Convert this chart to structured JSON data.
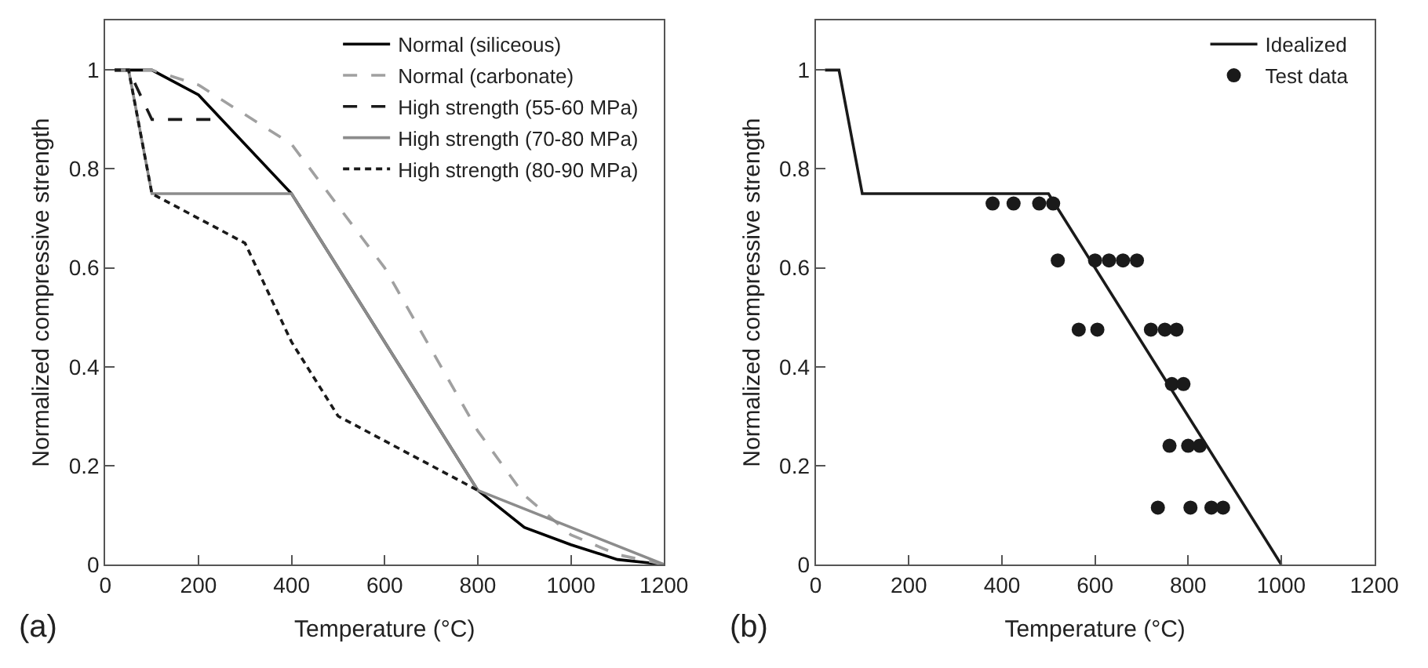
{
  "chart_data": [
    {
      "type": "line",
      "xlabel": "Temperature (°C)",
      "ylabel": "Normalized compressive strength",
      "annotations": [
        "(a)"
      ],
      "xlim": [
        0,
        1200
      ],
      "ylim": [
        0,
        1.1
      ],
      "xticks": [
        0,
        200,
        400,
        600,
        800,
        1000,
        1200
      ],
      "yticks": [
        0,
        0.2,
        0.4,
        0.6,
        0.8,
        1
      ],
      "legend": "top right",
      "marker": "none",
      "series": [
        {
          "name": "Normal (siliceous)",
          "color": "#000000",
          "line_style": "solid",
          "x": [
            20,
            100,
            200,
            400,
            800,
            900,
            1000,
            1100,
            1200
          ],
          "values": [
            1,
            1,
            0.95,
            0.75,
            0.15,
            0.075,
            0.04,
            0.01,
            0
          ]
        },
        {
          "name": "Normal (carbonate)",
          "color": "#a0a0a0",
          "line_style": "dashed",
          "x": [
            20,
            100,
            200,
            400,
            600,
            800,
            900,
            1000,
            1100,
            1200
          ],
          "values": [
            1,
            1,
            0.97,
            0.85,
            0.6,
            0.27,
            0.14,
            0.06,
            0.02,
            0
          ]
        },
        {
          "name": "High strength (55-60 MPa)",
          "color": "#1a1a1a",
          "line_style": "dashed",
          "x": [
            20,
            50,
            100,
            250
          ],
          "values": [
            1,
            1,
            0.9,
            0.9
          ]
        },
        {
          "name": "High strength (70-80 MPa)",
          "color": "#8c8c8c",
          "line_style": "solid",
          "x": [
            20,
            50,
            100,
            400,
            800,
            1200
          ],
          "values": [
            1,
            1,
            0.75,
            0.75,
            0.15,
            0
          ]
        },
        {
          "name": "High strength (80-90 MPa)",
          "color": "#1a1a1a",
          "line_style": "dotted",
          "x": [
            20,
            50,
            100,
            300,
            400,
            500,
            800
          ],
          "values": [
            1,
            1,
            0.75,
            0.65,
            0.45,
            0.3,
            0.15
          ]
        }
      ]
    },
    {
      "type": "line",
      "xlabel": "Temperature (°C)",
      "ylabel": "Normalized compressive strength",
      "annotations": [
        "(b)"
      ],
      "xlim": [
        0,
        1200
      ],
      "ylim": [
        0,
        1.1
      ],
      "xticks": [
        0,
        200,
        400,
        600,
        800,
        1000,
        1200
      ],
      "yticks": [
        0,
        0.2,
        0.4,
        0.6,
        0.8,
        1
      ],
      "legend": "top right",
      "series": [
        {
          "name": "Idealized",
          "color": "#1a1a1a",
          "line_style": "solid",
          "marker": "none",
          "x": [
            20,
            50,
            100,
            500,
            1000
          ],
          "values": [
            1,
            1,
            0.75,
            0.75,
            0
          ]
        },
        {
          "name": "Test data",
          "type": "scatter",
          "color": "#1a1a1a",
          "marker": "circle",
          "x": [
            380,
            425,
            480,
            510,
            520,
            600,
            630,
            660,
            690,
            565,
            605,
            720,
            750,
            775,
            765,
            790,
            760,
            800,
            825,
            735,
            805,
            850,
            875
          ],
          "values": [
            0.73,
            0.73,
            0.73,
            0.73,
            0.615,
            0.615,
            0.615,
            0.615,
            0.615,
            0.475,
            0.475,
            0.475,
            0.475,
            0.475,
            0.365,
            0.365,
            0.24,
            0.24,
            0.24,
            0.115,
            0.115,
            0.115,
            0.115
          ]
        }
      ]
    }
  ]
}
